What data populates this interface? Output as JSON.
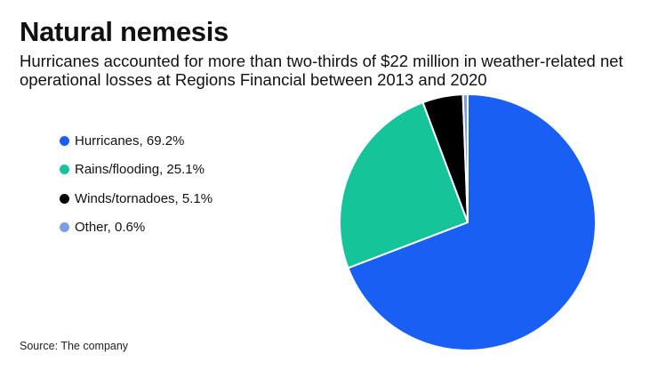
{
  "header": {
    "title": "Natural nemesis",
    "subtitle": "Hurricanes accounted for more than two-thirds of $22 million in weather-related net operational losses at Regions Financial between 2013 and 2020"
  },
  "legend": {
    "items": [
      {
        "label": "Hurricanes, 69.2%",
        "color": "#1a5ff3"
      },
      {
        "label": "Rains/flooding, 25.1%",
        "color": "#16c49a"
      },
      {
        "label": "Winds/tornadoes, 5.1%",
        "color": "#000000"
      },
      {
        "label": "Other, 0.6%",
        "color": "#7b9fe3"
      }
    ]
  },
  "footer": {
    "source": "Source: The company"
  },
  "chart_data": {
    "type": "pie",
    "title": "Natural nemesis",
    "categories": [
      "Hurricanes",
      "Rains/flooding",
      "Winds/tornadoes",
      "Other"
    ],
    "values": [
      69.2,
      25.1,
      5.1,
      0.6
    ],
    "colors": [
      "#1a5ff3",
      "#16c49a",
      "#000000",
      "#7b9fe3"
    ],
    "start": "top",
    "direction": "clockwise",
    "legend_position": "left"
  }
}
